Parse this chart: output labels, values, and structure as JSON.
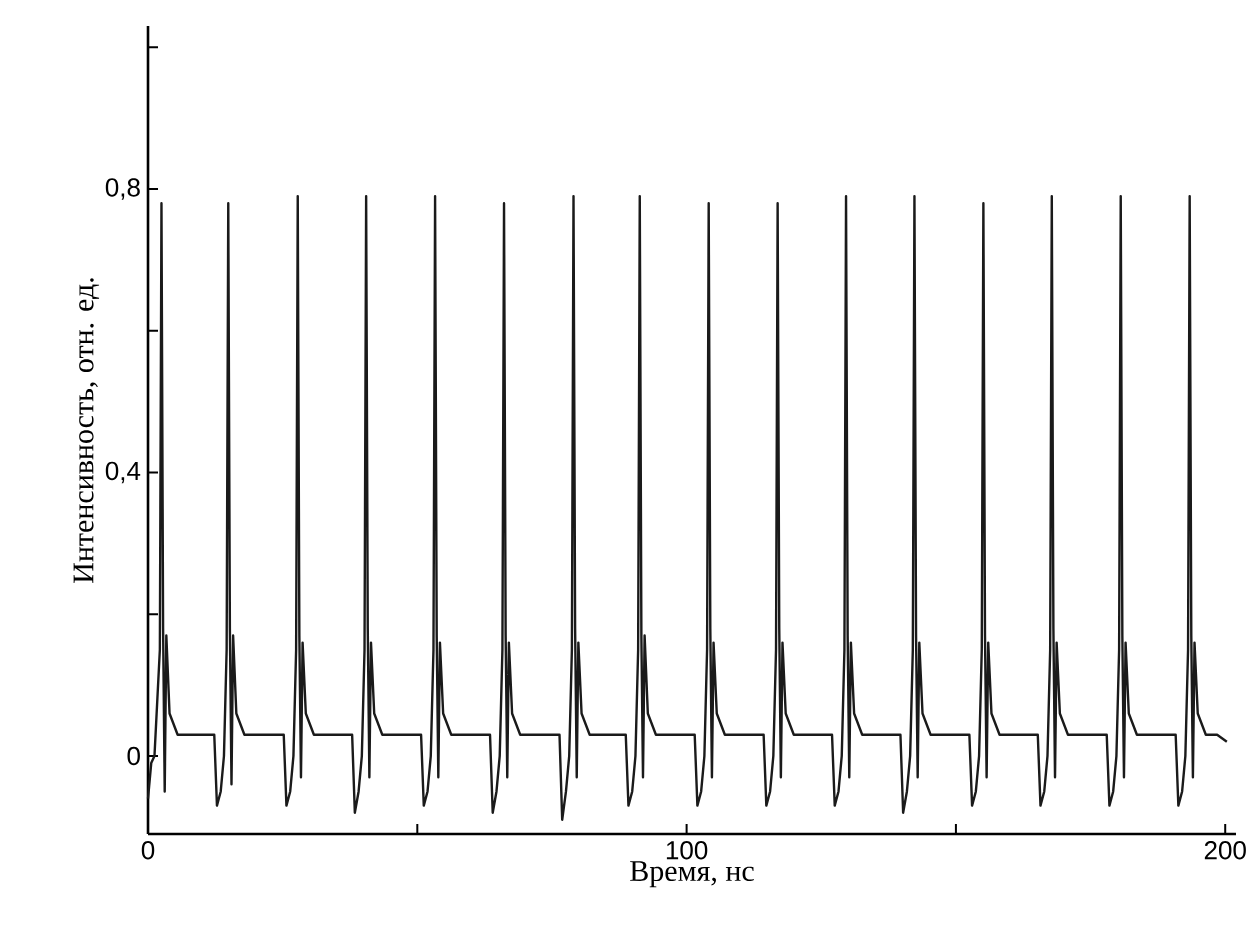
{
  "chart_data": {
    "type": "line",
    "xlabel": "Время, нс",
    "ylabel": "Интенсивность, отн. ед.",
    "xlim": [
      0,
      202
    ],
    "ylim": [
      -0.11,
      1.03
    ],
    "xticks": [
      0,
      {
        "value": 50,
        "label": null
      },
      100,
      {
        "value": 150,
        "label": null
      },
      200
    ],
    "yticks": [
      0,
      {
        "value": 0.2,
        "label": null
      },
      {
        "value": 0.4,
        "label": "0,4"
      },
      {
        "value": 0.6,
        "label": null
      },
      {
        "value": 0.8,
        "label": "0,8"
      },
      {
        "value": 1.0,
        "label": null
      }
    ],
    "color": "#1a1a1a",
    "x": [
      0.0,
      0.6,
      1.2,
      2.2,
      2.5,
      2.8,
      3.1,
      3.4,
      4.0,
      5.5,
      9.0,
      12.3,
      12.8,
      13.5,
      14.1,
      14.6,
      14.9,
      15.2,
      15.5,
      15.8,
      16.4,
      17.9,
      21.4,
      25.2,
      25.7,
      26.4,
      27.0,
      27.5,
      27.8,
      28.1,
      28.4,
      28.7,
      29.3,
      30.8,
      34.3,
      37.9,
      38.4,
      39.1,
      39.7,
      40.2,
      40.5,
      40.8,
      41.1,
      41.4,
      42.0,
      43.5,
      47.0,
      50.7,
      51.2,
      51.9,
      52.5,
      53.0,
      53.3,
      53.6,
      53.9,
      54.2,
      54.8,
      56.3,
      59.8,
      63.5,
      64.0,
      64.7,
      65.3,
      65.8,
      66.1,
      66.4,
      66.7,
      67.0,
      67.6,
      69.1,
      72.6,
      76.4,
      76.9,
      77.6,
      78.2,
      78.7,
      79.0,
      79.3,
      79.6,
      79.9,
      80.5,
      82.0,
      85.5,
      88.7,
      89.2,
      89.9,
      90.5,
      91.0,
      91.3,
      91.6,
      91.9,
      92.2,
      92.8,
      94.3,
      97.8,
      101.5,
      102.0,
      102.7,
      103.3,
      103.8,
      104.1,
      104.4,
      104.7,
      105.0,
      105.6,
      107.1,
      110.6,
      114.3,
      114.8,
      115.5,
      116.1,
      116.6,
      116.9,
      117.2,
      117.5,
      117.8,
      118.4,
      119.9,
      123.4,
      127.0,
      127.5,
      128.2,
      128.8,
      129.3,
      129.6,
      129.9,
      130.2,
      130.5,
      131.1,
      132.6,
      136.1,
      139.7,
      140.2,
      140.9,
      141.5,
      142.0,
      142.3,
      142.6,
      142.9,
      143.2,
      143.8,
      145.3,
      148.8,
      152.5,
      153.0,
      153.7,
      154.3,
      154.8,
      155.1,
      155.4,
      155.7,
      156.0,
      156.6,
      158.1,
      161.6,
      165.2,
      165.7,
      166.4,
      167.0,
      167.5,
      167.8,
      168.1,
      168.4,
      168.7,
      169.3,
      170.8,
      174.3,
      178.0,
      178.5,
      179.2,
      179.8,
      180.3,
      180.6,
      180.9,
      181.2,
      181.5,
      182.1,
      183.6,
      187.1,
      190.8,
      191.3,
      192.0,
      192.6,
      193.1,
      193.4,
      193.7,
      194.0,
      194.3,
      194.9,
      196.4,
      198.5,
      200.3
    ],
    "values": [
      -0.06,
      -0.01,
      0.0,
      0.15,
      0.78,
      0.18,
      -0.05,
      0.17,
      0.06,
      0.03,
      0.03,
      0.03,
      -0.07,
      -0.05,
      0.0,
      0.15,
      0.78,
      0.18,
      -0.04,
      0.17,
      0.06,
      0.03,
      0.03,
      0.03,
      -0.07,
      -0.05,
      0.0,
      0.15,
      0.79,
      0.17,
      -0.03,
      0.16,
      0.06,
      0.03,
      0.03,
      0.03,
      -0.08,
      -0.05,
      0.0,
      0.15,
      0.79,
      0.18,
      -0.03,
      0.16,
      0.06,
      0.03,
      0.03,
      0.03,
      -0.07,
      -0.05,
      0.0,
      0.15,
      0.79,
      0.17,
      -0.03,
      0.16,
      0.06,
      0.03,
      0.03,
      0.03,
      -0.08,
      -0.05,
      0.0,
      0.15,
      0.78,
      0.17,
      -0.03,
      0.16,
      0.06,
      0.03,
      0.03,
      0.03,
      -0.09,
      -0.05,
      0.0,
      0.15,
      0.79,
      0.18,
      -0.03,
      0.16,
      0.06,
      0.03,
      0.03,
      0.03,
      -0.07,
      -0.05,
      0.0,
      0.15,
      0.79,
      0.17,
      -0.03,
      0.17,
      0.06,
      0.03,
      0.03,
      0.03,
      -0.07,
      -0.05,
      0.0,
      0.15,
      0.78,
      0.18,
      -0.03,
      0.16,
      0.06,
      0.03,
      0.03,
      0.03,
      -0.07,
      -0.05,
      0.0,
      0.15,
      0.78,
      0.18,
      -0.03,
      0.16,
      0.06,
      0.03,
      0.03,
      0.03,
      -0.07,
      -0.05,
      0.0,
      0.15,
      0.79,
      0.17,
      -0.03,
      0.16,
      0.06,
      0.03,
      0.03,
      0.03,
      -0.08,
      -0.05,
      0.0,
      0.15,
      0.79,
      0.17,
      -0.03,
      0.16,
      0.06,
      0.03,
      0.03,
      0.03,
      -0.07,
      -0.05,
      0.0,
      0.15,
      0.78,
      0.17,
      -0.03,
      0.16,
      0.06,
      0.03,
      0.03,
      0.03,
      -0.07,
      -0.05,
      0.0,
      0.15,
      0.79,
      0.18,
      -0.03,
      0.16,
      0.06,
      0.03,
      0.03,
      0.03,
      -0.07,
      -0.05,
      0.0,
      0.15,
      0.79,
      0.17,
      -0.03,
      0.16,
      0.06,
      0.03,
      0.03,
      0.03,
      -0.07,
      -0.05,
      0.0,
      0.15,
      0.79,
      0.17,
      -0.03,
      0.16,
      0.06,
      0.03,
      0.03,
      0.02
    ]
  }
}
